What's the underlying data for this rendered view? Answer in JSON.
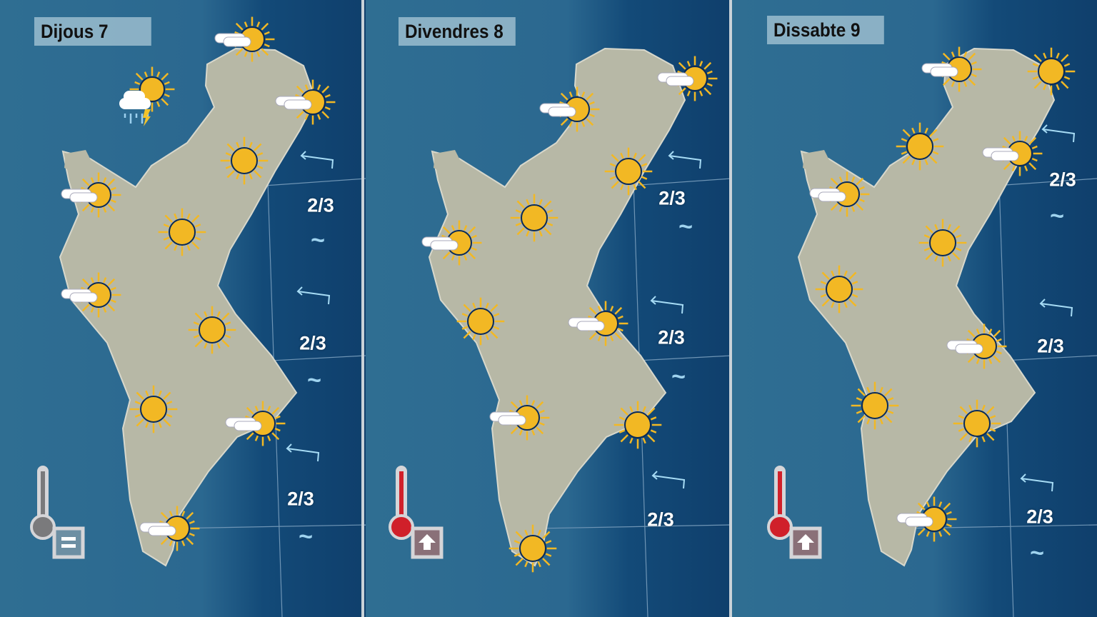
{
  "colors": {
    "sea": "#0f3f6c",
    "land": "#b8b9a9",
    "sun": "#f2b824",
    "thermo_warm": "#d0202a",
    "thermo_neutral": "#7a7a7c"
  },
  "panels": [
    {
      "title": "Dijous 7",
      "icons": [
        "sun-cloud",
        "storm-rain",
        "sun-cloud",
        "sun",
        "sun-cloud",
        "sun",
        "sun-cloud",
        "sun",
        "sun",
        "sun-cloud",
        "sun-cloud"
      ],
      "sea_state": [
        "2/3",
        "2/3",
        "2/3"
      ],
      "wave_symbol": "~",
      "wind_icon": "wind-arrow-icon",
      "temperature_trend": "stable"
    },
    {
      "title": "Divendres 8",
      "icons": [
        "sun-cloud",
        "sun-cloud",
        "sun",
        "sun",
        "sun-cloud",
        "sun",
        "sun-cloud",
        "sun-cloud",
        "sun",
        "sun"
      ],
      "sea_state": [
        "2/3",
        "2/3",
        "2/3"
      ],
      "wave_symbol": "~",
      "wind_icon": "wind-arrow-icon",
      "temperature_trend": "rising"
    },
    {
      "title": "Dissabte 9",
      "icons": [
        "sun-cloud",
        "sun",
        "sun",
        "sun-cloud",
        "sun-cloud",
        "sun",
        "sun",
        "sun-cloud",
        "sun",
        "sun",
        "sun-cloud"
      ],
      "sea_state": [
        "2/3",
        "2/3",
        "2/3"
      ],
      "wave_symbol": "~",
      "wind_icon": "wind-arrow-icon",
      "temperature_trend": "rising"
    }
  ]
}
